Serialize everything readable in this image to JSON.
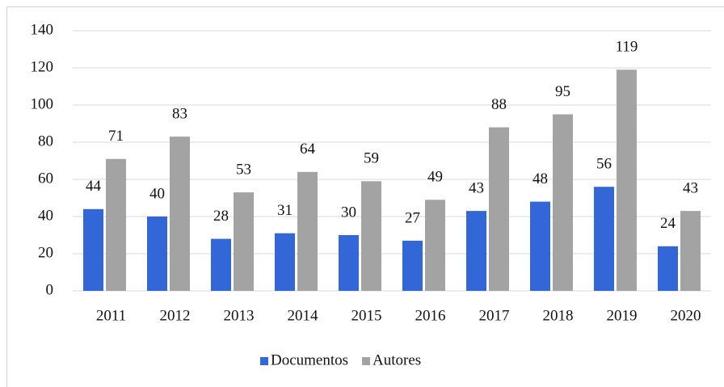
{
  "chart_data": {
    "type": "bar",
    "categories": [
      "2011",
      "2012",
      "2013",
      "2014",
      "2015",
      "2016",
      "2017",
      "2018",
      "2019",
      "2020"
    ],
    "series": [
      {
        "name": "Documentos",
        "color": "#3366d6",
        "values": [
          44,
          40,
          28,
          31,
          30,
          27,
          43,
          48,
          56,
          24
        ]
      },
      {
        "name": "Autores",
        "color": "#a3a3a3",
        "values": [
          71,
          83,
          53,
          64,
          59,
          49,
          88,
          95,
          119,
          43
        ]
      }
    ],
    "ylim": [
      0,
      140
    ],
    "yticks": [
      0,
      20,
      40,
      60,
      80,
      100,
      120,
      140
    ],
    "grid": true,
    "legend": "bottom"
  }
}
